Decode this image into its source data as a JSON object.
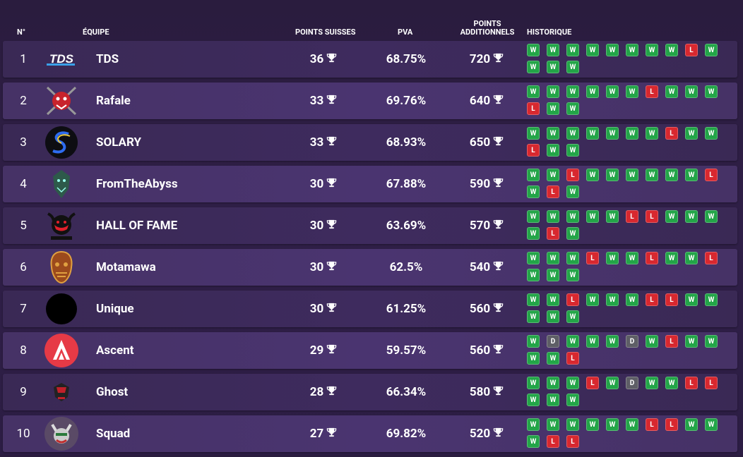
{
  "header": {
    "rank": "N°",
    "team": "ÉQUIPE",
    "swiss": "POINTS SUISSES",
    "pva": "PVA",
    "additional_line1": "POINTS",
    "additional_line2": "ADDITIONNELS",
    "history": "HISTORIQUE"
  },
  "colors": {
    "win": "#23a548",
    "loss": "#d8282f",
    "draw": "#5e5e66",
    "background": "#2f1f47"
  },
  "teams": [
    {
      "rank": "1",
      "name": "TDS",
      "swiss": "36",
      "pva": "68.75%",
      "additional": "720",
      "history": [
        "W",
        "W",
        "W",
        "W",
        "W",
        "W",
        "W",
        "W",
        "L",
        "W",
        "W",
        "W",
        "W"
      ],
      "logo_icon": "tds-logo-icon"
    },
    {
      "rank": "2",
      "name": "Rafale",
      "swiss": "33",
      "pva": "69.76%",
      "additional": "640",
      "history": [
        "W",
        "W",
        "W",
        "W",
        "W",
        "W",
        "L",
        "W",
        "W",
        "W",
        "L",
        "W",
        "W"
      ],
      "logo_icon": "rafale-logo-icon"
    },
    {
      "rank": "3",
      "name": "SOLARY",
      "swiss": "33",
      "pva": "68.93%",
      "additional": "650",
      "history": [
        "W",
        "W",
        "W",
        "W",
        "W",
        "W",
        "W",
        "L",
        "W",
        "W",
        "L",
        "W",
        "W"
      ],
      "logo_icon": "solary-logo-icon"
    },
    {
      "rank": "4",
      "name": "FromTheAbyss",
      "swiss": "30",
      "pva": "67.88%",
      "additional": "590",
      "history": [
        "W",
        "W",
        "L",
        "W",
        "W",
        "W",
        "W",
        "W",
        "W",
        "L",
        "W",
        "L",
        "W"
      ],
      "logo_icon": "fromtheabyss-logo-icon"
    },
    {
      "rank": "5",
      "name": "HALL OF FAME",
      "swiss": "30",
      "pva": "63.69%",
      "additional": "570",
      "history": [
        "W",
        "W",
        "W",
        "W",
        "W",
        "L",
        "L",
        "W",
        "W",
        "W",
        "W",
        "L",
        "W"
      ],
      "logo_icon": "halloffame-logo-icon"
    },
    {
      "rank": "6",
      "name": "Motamawa",
      "swiss": "30",
      "pva": "62.5%",
      "additional": "540",
      "history": [
        "W",
        "W",
        "W",
        "L",
        "W",
        "W",
        "L",
        "W",
        "W",
        "L",
        "W",
        "W",
        "W"
      ],
      "logo_icon": "motamawa-logo-icon"
    },
    {
      "rank": "7",
      "name": "Unique",
      "swiss": "30",
      "pva": "61.25%",
      "additional": "560",
      "history": [
        "W",
        "W",
        "L",
        "W",
        "W",
        "W",
        "L",
        "L",
        "W",
        "W",
        "W",
        "W",
        "W"
      ],
      "logo_icon": "unique-logo-icon"
    },
    {
      "rank": "8",
      "name": "Ascent",
      "swiss": "29",
      "pva": "59.57%",
      "additional": "560",
      "history": [
        "W",
        "D",
        "W",
        "W",
        "W",
        "D",
        "W",
        "L",
        "W",
        "W",
        "W",
        "W",
        "L"
      ],
      "logo_icon": "ascent-logo-icon"
    },
    {
      "rank": "9",
      "name": "Ghost",
      "swiss": "28",
      "pva": "66.34%",
      "additional": "580",
      "history": [
        "W",
        "W",
        "W",
        "L",
        "W",
        "D",
        "W",
        "W",
        "L",
        "L",
        "W",
        "W",
        "W"
      ],
      "logo_icon": "ghost-logo-icon"
    },
    {
      "rank": "10",
      "name": "Squad",
      "swiss": "27",
      "pva": "69.82%",
      "additional": "520",
      "history": [
        "W",
        "W",
        "W",
        "W",
        "W",
        "W",
        "L",
        "L",
        "W",
        "W",
        "W",
        "L",
        "L"
      ],
      "logo_icon": "squad-logo-icon"
    }
  ]
}
